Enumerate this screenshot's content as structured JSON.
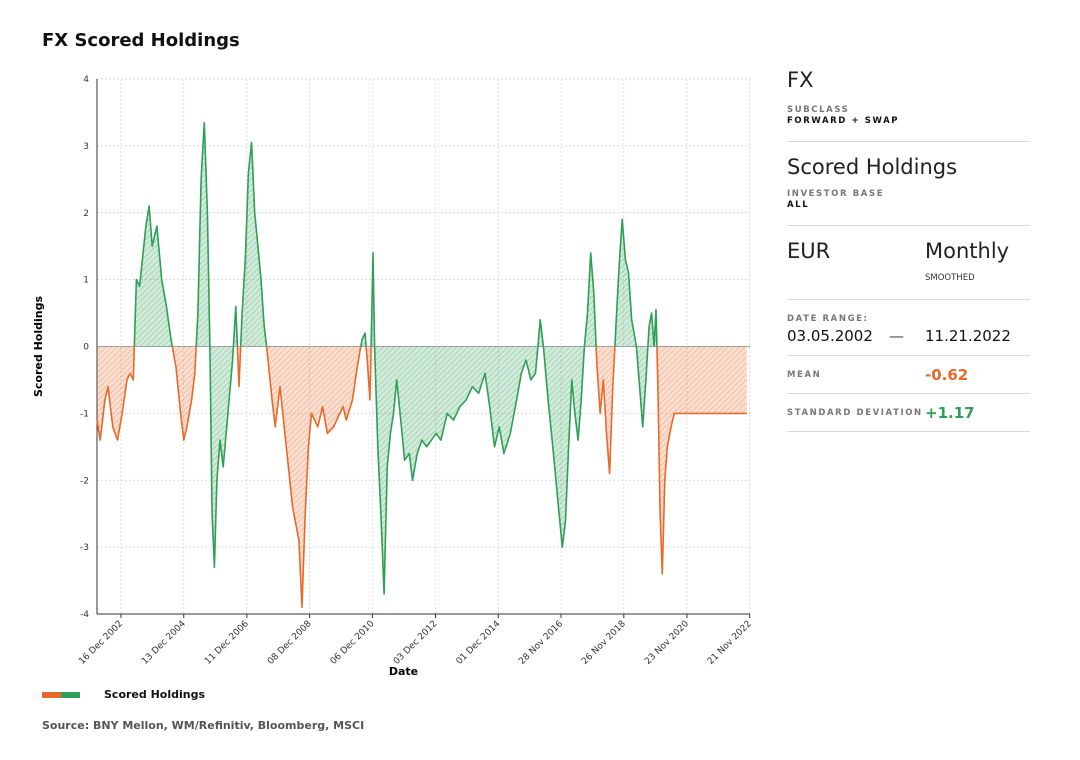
{
  "title": "FX Scored Holdings",
  "panel": {
    "asset_class": "FX",
    "subclass_label": "SUBCLASS",
    "subclass_value": "FORWARD + SWAP",
    "measure": "Scored Holdings",
    "investor_base_label": "INVESTOR BASE",
    "investor_base_value": "ALL",
    "currency": "EUR",
    "frequency": "Monthly",
    "frequency_note": "SMOOTHED",
    "date_range_label": "DATE RANGE:",
    "date_start": "03.05.2002",
    "date_dash": "—",
    "date_end": "11.21.2022",
    "mean_label": "MEAN",
    "mean_value": "-0.62",
    "sd_label": "STANDARD DEVIATION",
    "sd_value": "+1.17",
    "colors": {
      "negative": "#e8692a",
      "positive": "#2f9e57"
    }
  },
  "legend": {
    "label": "Scored Holdings"
  },
  "source": "Source: BNY Mellon, WM/Refinitiv, Bloomberg, MSCI",
  "chart_data": {
    "type": "area",
    "xlabel": "Date",
    "ylabel": "Scored Holdings",
    "ylim": [
      -4,
      4
    ],
    "yticks": [
      4,
      3,
      2,
      1,
      0,
      -1,
      -2,
      -3,
      -4
    ],
    "xlim": [
      2002.2,
      2022.9
    ],
    "xtick_labels": [
      "16 Dec 2002",
      "13 Dec 2004",
      "11 Dec 2006",
      "08 Dec 2008",
      "06 Dec 2010",
      "03 Dec 2012",
      "01 Dec 2014",
      "28 Nov 2016",
      "26 Nov 2018",
      "23 Nov 2020",
      "21 Nov 2022"
    ],
    "xtick_years": [
      2002.96,
      2004.95,
      2006.95,
      2008.94,
      2010.93,
      2012.93,
      2014.92,
      2016.91,
      2018.9,
      2020.9,
      2022.89
    ],
    "grid": true,
    "legend_position": "bottom-left",
    "series": [
      {
        "name": "Scored Holdings",
        "points": [
          [
            2002.2,
            -1.1
          ],
          [
            2002.3,
            -1.4
          ],
          [
            2002.45,
            -0.8
          ],
          [
            2002.55,
            -0.6
          ],
          [
            2002.7,
            -1.2
          ],
          [
            2002.85,
            -1.4
          ],
          [
            2003.0,
            -1.0
          ],
          [
            2003.15,
            -0.5
          ],
          [
            2003.25,
            -0.4
          ],
          [
            2003.35,
            -0.5
          ],
          [
            2003.45,
            1.0
          ],
          [
            2003.55,
            0.9
          ],
          [
            2003.75,
            1.8
          ],
          [
            2003.85,
            2.1
          ],
          [
            2003.95,
            1.5
          ],
          [
            2004.1,
            1.8
          ],
          [
            2004.25,
            1.0
          ],
          [
            2004.4,
            0.6
          ],
          [
            2004.55,
            0.1
          ],
          [
            2004.7,
            -0.3
          ],
          [
            2004.85,
            -1.0
          ],
          [
            2004.95,
            -1.4
          ],
          [
            2005.05,
            -1.2
          ],
          [
            2005.2,
            -0.8
          ],
          [
            2005.3,
            -0.4
          ],
          [
            2005.4,
            0.5
          ],
          [
            2005.5,
            2.5
          ],
          [
            2005.6,
            3.35
          ],
          [
            2005.7,
            2.0
          ],
          [
            2005.78,
            0.0
          ],
          [
            2005.85,
            -2.5
          ],
          [
            2005.92,
            -3.3
          ],
          [
            2006.0,
            -2.0
          ],
          [
            2006.1,
            -1.4
          ],
          [
            2006.2,
            -1.8
          ],
          [
            2006.35,
            -1.0
          ],
          [
            2006.5,
            -0.2
          ],
          [
            2006.6,
            0.6
          ],
          [
            2006.7,
            -0.6
          ],
          [
            2006.8,
            0.5
          ],
          [
            2006.9,
            1.3
          ],
          [
            2007.0,
            2.6
          ],
          [
            2007.1,
            3.05
          ],
          [
            2007.2,
            2.0
          ],
          [
            2007.3,
            1.5
          ],
          [
            2007.4,
            1.0
          ],
          [
            2007.5,
            0.3
          ],
          [
            2007.6,
            -0.1
          ],
          [
            2007.75,
            -0.8
          ],
          [
            2007.85,
            -1.2
          ],
          [
            2008.0,
            -0.6
          ],
          [
            2008.2,
            -1.5
          ],
          [
            2008.4,
            -2.4
          ],
          [
            2008.6,
            -2.9
          ],
          [
            2008.7,
            -3.9
          ],
          [
            2008.8,
            -2.5
          ],
          [
            2008.9,
            -1.5
          ],
          [
            2009.0,
            -1.0
          ],
          [
            2009.2,
            -1.2
          ],
          [
            2009.35,
            -0.9
          ],
          [
            2009.5,
            -1.3
          ],
          [
            2009.7,
            -1.2
          ],
          [
            2009.9,
            -1.0
          ],
          [
            2010.0,
            -0.9
          ],
          [
            2010.1,
            -1.1
          ],
          [
            2010.3,
            -0.8
          ],
          [
            2010.45,
            -0.3
          ],
          [
            2010.6,
            0.1
          ],
          [
            2010.7,
            0.2
          ],
          [
            2010.78,
            -0.3
          ],
          [
            2010.85,
            -0.8
          ],
          [
            2010.9,
            0.2
          ],
          [
            2010.95,
            1.4
          ],
          [
            2011.0,
            0.0
          ],
          [
            2011.1,
            -1.5
          ],
          [
            2011.2,
            -2.5
          ],
          [
            2011.3,
            -3.7
          ],
          [
            2011.4,
            -1.8
          ],
          [
            2011.5,
            -1.3
          ],
          [
            2011.6,
            -1.0
          ],
          [
            2011.7,
            -0.5
          ],
          [
            2011.85,
            -1.2
          ],
          [
            2011.95,
            -1.7
          ],
          [
            2012.1,
            -1.6
          ],
          [
            2012.2,
            -2.0
          ],
          [
            2012.35,
            -1.6
          ],
          [
            2012.5,
            -1.4
          ],
          [
            2012.65,
            -1.5
          ],
          [
            2012.8,
            -1.4
          ],
          [
            2012.95,
            -1.3
          ],
          [
            2013.1,
            -1.4
          ],
          [
            2013.3,
            -1.0
          ],
          [
            2013.5,
            -1.1
          ],
          [
            2013.7,
            -0.9
          ],
          [
            2013.9,
            -0.8
          ],
          [
            2014.1,
            -0.6
          ],
          [
            2014.3,
            -0.7
          ],
          [
            2014.5,
            -0.4
          ],
          [
            2014.65,
            -0.9
          ],
          [
            2014.8,
            -1.5
          ],
          [
            2014.95,
            -1.2
          ],
          [
            2015.1,
            -1.6
          ],
          [
            2015.3,
            -1.3
          ],
          [
            2015.5,
            -0.8
          ],
          [
            2015.65,
            -0.4
          ],
          [
            2015.8,
            -0.2
          ],
          [
            2015.95,
            -0.5
          ],
          [
            2016.1,
            -0.4
          ],
          [
            2016.25,
            0.4
          ],
          [
            2016.35,
            0.0
          ],
          [
            2016.5,
            -0.8
          ],
          [
            2016.65,
            -1.5
          ],
          [
            2016.85,
            -2.5
          ],
          [
            2016.95,
            -3.0
          ],
          [
            2017.05,
            -2.6
          ],
          [
            2017.15,
            -1.5
          ],
          [
            2017.25,
            -0.5
          ],
          [
            2017.35,
            -1.0
          ],
          [
            2017.45,
            -1.4
          ],
          [
            2017.55,
            -0.8
          ],
          [
            2017.65,
            0.0
          ],
          [
            2017.75,
            0.5
          ],
          [
            2017.85,
            1.4
          ],
          [
            2017.95,
            0.8
          ],
          [
            2018.05,
            -0.3
          ],
          [
            2018.15,
            -1.0
          ],
          [
            2018.25,
            -0.5
          ],
          [
            2018.35,
            -1.3
          ],
          [
            2018.45,
            -1.9
          ],
          [
            2018.55,
            -0.6
          ],
          [
            2018.65,
            0.3
          ],
          [
            2018.75,
            1.2
          ],
          [
            2018.85,
            1.9
          ],
          [
            2018.95,
            1.3
          ],
          [
            2019.05,
            1.1
          ],
          [
            2019.15,
            0.4
          ],
          [
            2019.3,
            0.0
          ],
          [
            2019.4,
            -0.6
          ],
          [
            2019.5,
            -1.2
          ],
          [
            2019.6,
            -0.5
          ],
          [
            2019.7,
            0.3
          ],
          [
            2019.78,
            0.5
          ],
          [
            2019.86,
            0.0
          ],
          [
            2019.92,
            0.55
          ],
          [
            2019.98,
            -0.6
          ],
          [
            2020.05,
            -2.5
          ],
          [
            2020.12,
            -3.4
          ],
          [
            2020.2,
            -2.0
          ],
          [
            2020.28,
            -1.5
          ],
          [
            2020.4,
            -1.2
          ],
          [
            2020.5,
            -1.0
          ],
          [
            2022.8,
            -1.0
          ]
        ]
      }
    ]
  }
}
